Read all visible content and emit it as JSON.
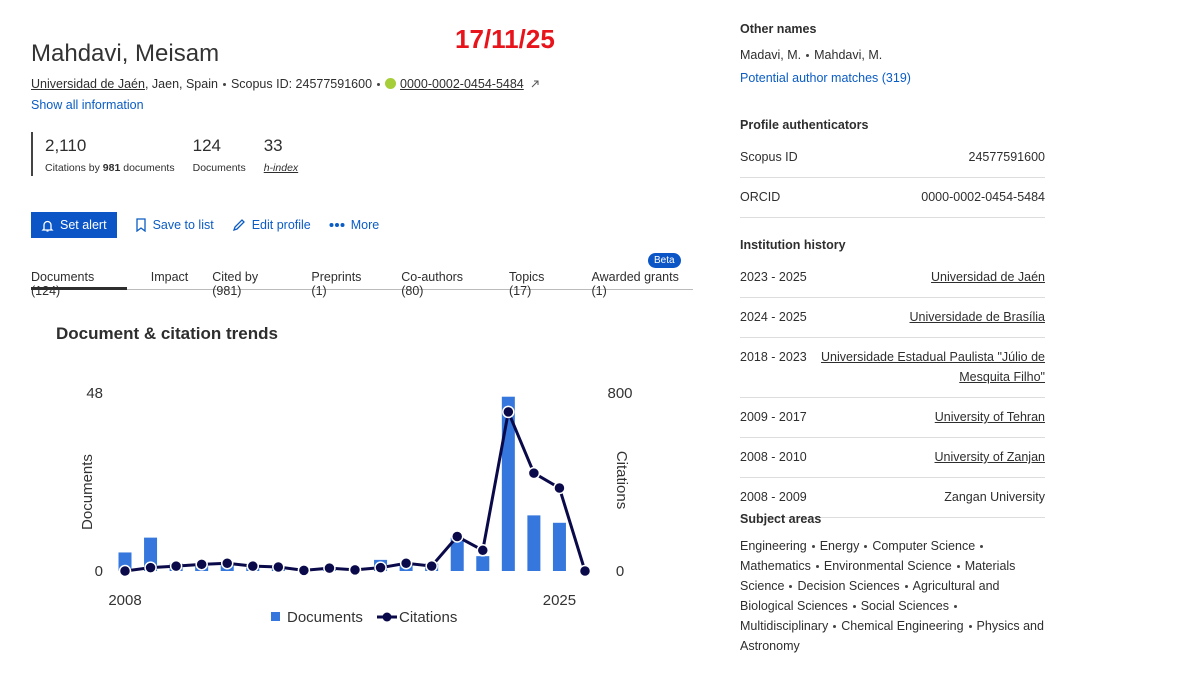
{
  "stamp": "17/11/25",
  "header": {
    "name": "Mahdavi, Meisam",
    "affiliation": "Universidad de Jaén",
    "location": ", Jaen, Spain",
    "scopus_id": "Scopus ID: 24577591600",
    "orcid": "0000-0002-0454-5484",
    "show_all": "Show all information"
  },
  "metrics": [
    {
      "value": "2,110",
      "label": "Citations by",
      "count": "981",
      "suffix": "documents"
    },
    {
      "value": "124",
      "label": "Documents"
    },
    {
      "value": "33",
      "label": "h-index"
    }
  ],
  "actions": [
    "Set alert",
    "Save to list",
    "Edit profile",
    "More"
  ],
  "tabs": [
    "Documents (124)",
    "Impact",
    "Cited by (981)",
    "Preprints (1)",
    "Co-authors (80)",
    "Topics (17)",
    "Awarded grants (1)"
  ],
  "tab_badge": "Beta",
  "chart_data": {
    "type": "bar-line",
    "title": "Document & citation trends",
    "categories": [
      "2008",
      null,
      null,
      null,
      null,
      null,
      null,
      null,
      null,
      null,
      null,
      null,
      null,
      null,
      null,
      null,
      null,
      "2025",
      null
    ],
    "series": [
      {
        "name": "Documents",
        "type": "bar",
        "color": "#3577dc",
        "values": [
          5,
          9,
          2,
          2,
          2,
          1,
          1,
          0,
          1,
          0,
          3,
          2,
          2,
          9,
          4,
          47,
          15,
          13,
          0
        ]
      },
      {
        "name": "Citations",
        "type": "line",
        "axis": "y2",
        "color": "#0a0a4a",
        "values": [
          0,
          15,
          22,
          30,
          35,
          22,
          18,
          3,
          13,
          5,
          15,
          35,
          22,
          155,
          93,
          715,
          440,
          373,
          0
        ]
      }
    ],
    "ylabel": "Documents",
    "y2label": "Citations",
    "ylim": [
      0,
      48
    ],
    "yticks": [
      0,
      48
    ],
    "y2lim": [
      0,
      800
    ],
    "y2ticks": [
      0,
      800
    ],
    "grid": false
  },
  "sidebar": {
    "other_names": {
      "title": "Other names",
      "names": [
        "Madavi, M.",
        "Mahdavi, M."
      ],
      "link": "Potential author matches (319)"
    },
    "authenticators": {
      "title": "Profile authenticators",
      "rows": [
        [
          "Scopus ID",
          "24577591600"
        ],
        [
          "ORCID",
          "0000-0002-0454-5484"
        ]
      ]
    },
    "institutions": {
      "title": "Institution history",
      "rows": [
        [
          "2023 - 2025",
          "Universidad de Jaén"
        ],
        [
          "2024 - 2025",
          "Universidade de Brasília"
        ],
        [
          "2018 - 2023",
          "Universidade Estadual Paulista \"Júlio de Mesquita Filho\""
        ],
        [
          "2009 - 2017",
          "University of Tehran"
        ],
        [
          "2008 - 2010",
          "University of Zanjan"
        ],
        [
          "2008 - 2009",
          "Zangan University"
        ]
      ]
    },
    "subjects": {
      "title": "Subject areas",
      "items": [
        "Engineering",
        "Energy",
        "Computer Science",
        "Mathematics",
        "Environmental Science",
        "Materials Science",
        "Decision Sciences",
        "Agricultural and Biological Sciences",
        "Social Sciences",
        "Multidisciplinary",
        "Chemical Engineering",
        "Physics and Astronomy"
      ]
    }
  }
}
